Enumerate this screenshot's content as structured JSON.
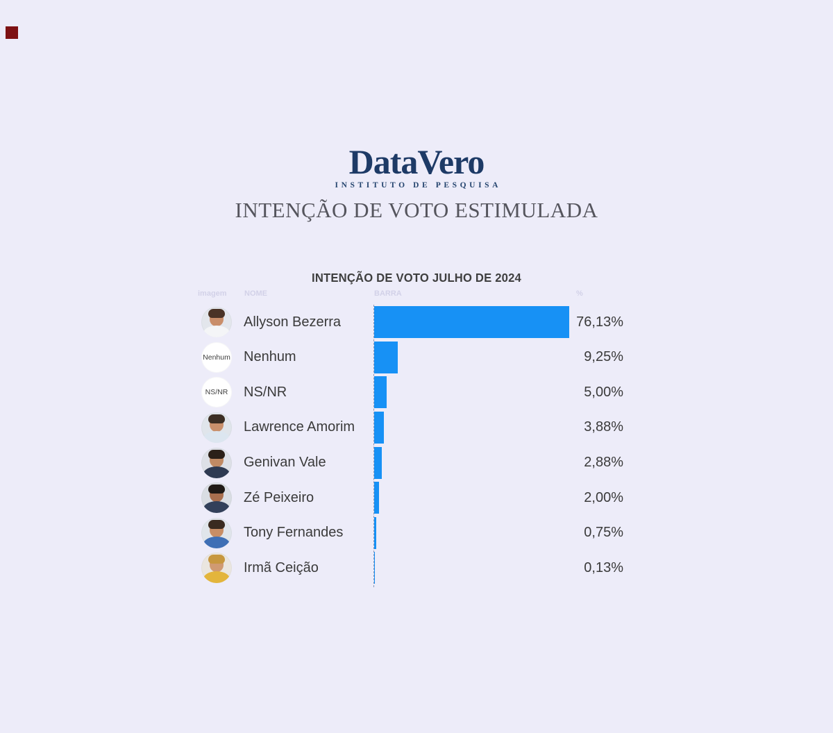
{
  "page": {
    "background": "#EDECF9",
    "corner_square_color": "#7D1113"
  },
  "logo": {
    "brand": "DataVero",
    "tagline": "INSTITUTO DE PESQUISA",
    "color": "#1D3A66"
  },
  "heading": "INTENÇÃO DE VOTO ESTIMULADA",
  "chart": {
    "title": "INTENÇÃO DE VOTO JULHO DE 2024",
    "ghost_headers": [
      "imagem",
      "NOME",
      "BARRA",
      "%"
    ],
    "bar_color": "#1791F5",
    "rows": [
      {
        "name": "Allyson Bezerra",
        "value": 76.13,
        "label": "76,13%",
        "avatar": {
          "kind": "photo",
          "bg": "#E3E6EC",
          "hair": "#4A3326",
          "skin": "#C98E6A",
          "shirt": "#F4F5F7"
        }
      },
      {
        "name": "Nenhum",
        "value": 9.25,
        "label": "9,25%",
        "avatar": {
          "kind": "text",
          "text": "Nenhum",
          "bg": "#FFFFFF"
        }
      },
      {
        "name": "NS/NR",
        "value": 5.0,
        "label": "5,00%",
        "avatar": {
          "kind": "text",
          "text": "NS/NR",
          "bg": "#FFFFFF"
        }
      },
      {
        "name": "Lawrence Amorim",
        "value": 3.88,
        "label": "3,88%",
        "avatar": {
          "kind": "photo",
          "bg": "#E0E5EB",
          "hair": "#3C2E24",
          "skin": "#C9906C",
          "shirt": "#DCE6F0"
        }
      },
      {
        "name": "Genivan Vale",
        "value": 2.88,
        "label": "2,88%",
        "avatar": {
          "kind": "photo",
          "bg": "#DDE0E7",
          "hair": "#2B2018",
          "skin": "#C08A64",
          "shirt": "#2E3A52"
        }
      },
      {
        "name": "Zé Peixeiro",
        "value": 2.0,
        "label": "2,00%",
        "avatar": {
          "kind": "photo",
          "bg": "#D9DDE3",
          "hair": "#201A16",
          "skin": "#A96F4E",
          "shirt": "#32405A"
        }
      },
      {
        "name": "Tony Fernandes",
        "value": 0.75,
        "label": "0,75%",
        "avatar": {
          "kind": "photo",
          "bg": "#E0E5EB",
          "hair": "#3A2B20",
          "skin": "#C88E66",
          "shirt": "#3F6FB5"
        }
      },
      {
        "name": "Irmã Ceição",
        "value": 0.13,
        "label": "0,13%",
        "avatar": {
          "kind": "photo",
          "bg": "#EAE6E0",
          "hair": "#C7973F",
          "skin": "#D09A72",
          "shirt": "#E3B53C"
        }
      }
    ]
  },
  "chart_data": {
    "type": "bar",
    "orientation": "horizontal",
    "title": "INTENÇÃO DE VOTO JULHO DE 2024",
    "categories": [
      "Allyson Bezerra",
      "Nenhum",
      "NS/NR",
      "Lawrence Amorim",
      "Genivan Vale",
      "Zé Peixeiro",
      "Tony Fernandes",
      "Irmã Ceição"
    ],
    "values": [
      76.13,
      9.25,
      5.0,
      3.88,
      2.88,
      2.0,
      0.75,
      0.13
    ],
    "value_labels": [
      "76,13%",
      "9,25%",
      "5,00%",
      "3,88%",
      "2,88%",
      "2,00%",
      "0,75%",
      "0,13%"
    ],
    "xlim": [
      0,
      100
    ],
    "grid": false,
    "legend": false,
    "bar_color": "#1791F5",
    "value_label_position": "right-column"
  }
}
